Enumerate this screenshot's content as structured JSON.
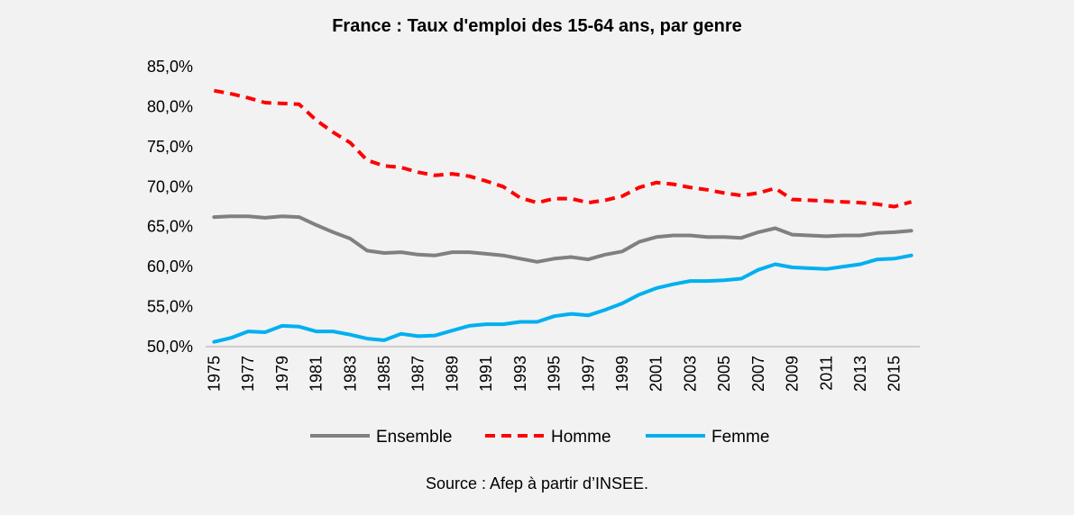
{
  "chart_data": {
    "type": "line",
    "title": "France : Taux d'emploi des 15-64 ans, par genre",
    "source": "Source : Afep à partir d’INSEE.",
    "x": [
      1975,
      1976,
      1977,
      1978,
      1979,
      1980,
      1981,
      1982,
      1983,
      1984,
      1985,
      1986,
      1987,
      1988,
      1989,
      1990,
      1991,
      1992,
      1993,
      1994,
      1995,
      1996,
      1997,
      1998,
      1999,
      2000,
      2001,
      2002,
      2003,
      2004,
      2005,
      2006,
      2007,
      2008,
      2009,
      2010,
      2011,
      2012,
      2013,
      2014,
      2015,
      2016
    ],
    "x_tick_labels": [
      "1975",
      "1977",
      "1979",
      "1981",
      "1983",
      "1985",
      "1987",
      "1989",
      "1991",
      "1993",
      "1995",
      "1997",
      "1999",
      "2001",
      "2003",
      "2005",
      "2007",
      "2009",
      "2011",
      "2013",
      "2015"
    ],
    "y_tick_labels": [
      "50,0%",
      "55,0%",
      "60,0%",
      "65,0%",
      "70,0%",
      "75,0%",
      "80,0%",
      "85,0%"
    ],
    "ylim": [
      50,
      85
    ],
    "series": [
      {
        "name": "Ensemble",
        "color": "#808080",
        "dash": "solid",
        "values": [
          66.2,
          66.3,
          66.3,
          66.1,
          66.3,
          66.2,
          65.2,
          64.3,
          63.5,
          62.0,
          61.7,
          61.8,
          61.5,
          61.4,
          61.8,
          61.8,
          61.6,
          61.4,
          61.0,
          60.6,
          61.0,
          61.2,
          60.9,
          61.5,
          61.9,
          63.1,
          63.7,
          63.9,
          63.9,
          63.7,
          63.7,
          63.6,
          64.3,
          64.8,
          64.0,
          63.9,
          63.8,
          63.9,
          63.9,
          64.2,
          64.3,
          64.5
        ]
      },
      {
        "name": "Homme",
        "color": "#ff0000",
        "dash": "dashed",
        "values": [
          82.0,
          81.6,
          81.1,
          80.5,
          80.4,
          80.3,
          78.3,
          76.8,
          75.5,
          73.3,
          72.6,
          72.4,
          71.8,
          71.4,
          71.6,
          71.3,
          70.7,
          70.0,
          68.6,
          68.0,
          68.5,
          68.5,
          68.0,
          68.3,
          68.8,
          69.9,
          70.5,
          70.3,
          69.9,
          69.6,
          69.2,
          68.9,
          69.2,
          69.8,
          68.4,
          68.3,
          68.2,
          68.1,
          68.0,
          67.8,
          67.5,
          68.1
        ]
      },
      {
        "name": "Femme",
        "color": "#00b0f0",
        "dash": "solid",
        "values": [
          50.6,
          51.1,
          51.9,
          51.8,
          52.6,
          52.5,
          51.9,
          51.9,
          51.5,
          51.0,
          50.8,
          51.6,
          51.3,
          51.4,
          52.0,
          52.6,
          52.8,
          52.8,
          53.1,
          53.1,
          53.8,
          54.1,
          53.9,
          54.6,
          55.4,
          56.5,
          57.3,
          57.8,
          58.2,
          58.2,
          58.3,
          58.5,
          59.6,
          60.3,
          59.9,
          59.8,
          59.7,
          60.0,
          60.3,
          60.9,
          61.0,
          61.4
        ]
      }
    ],
    "legend_position": "bottom",
    "grid": false
  }
}
